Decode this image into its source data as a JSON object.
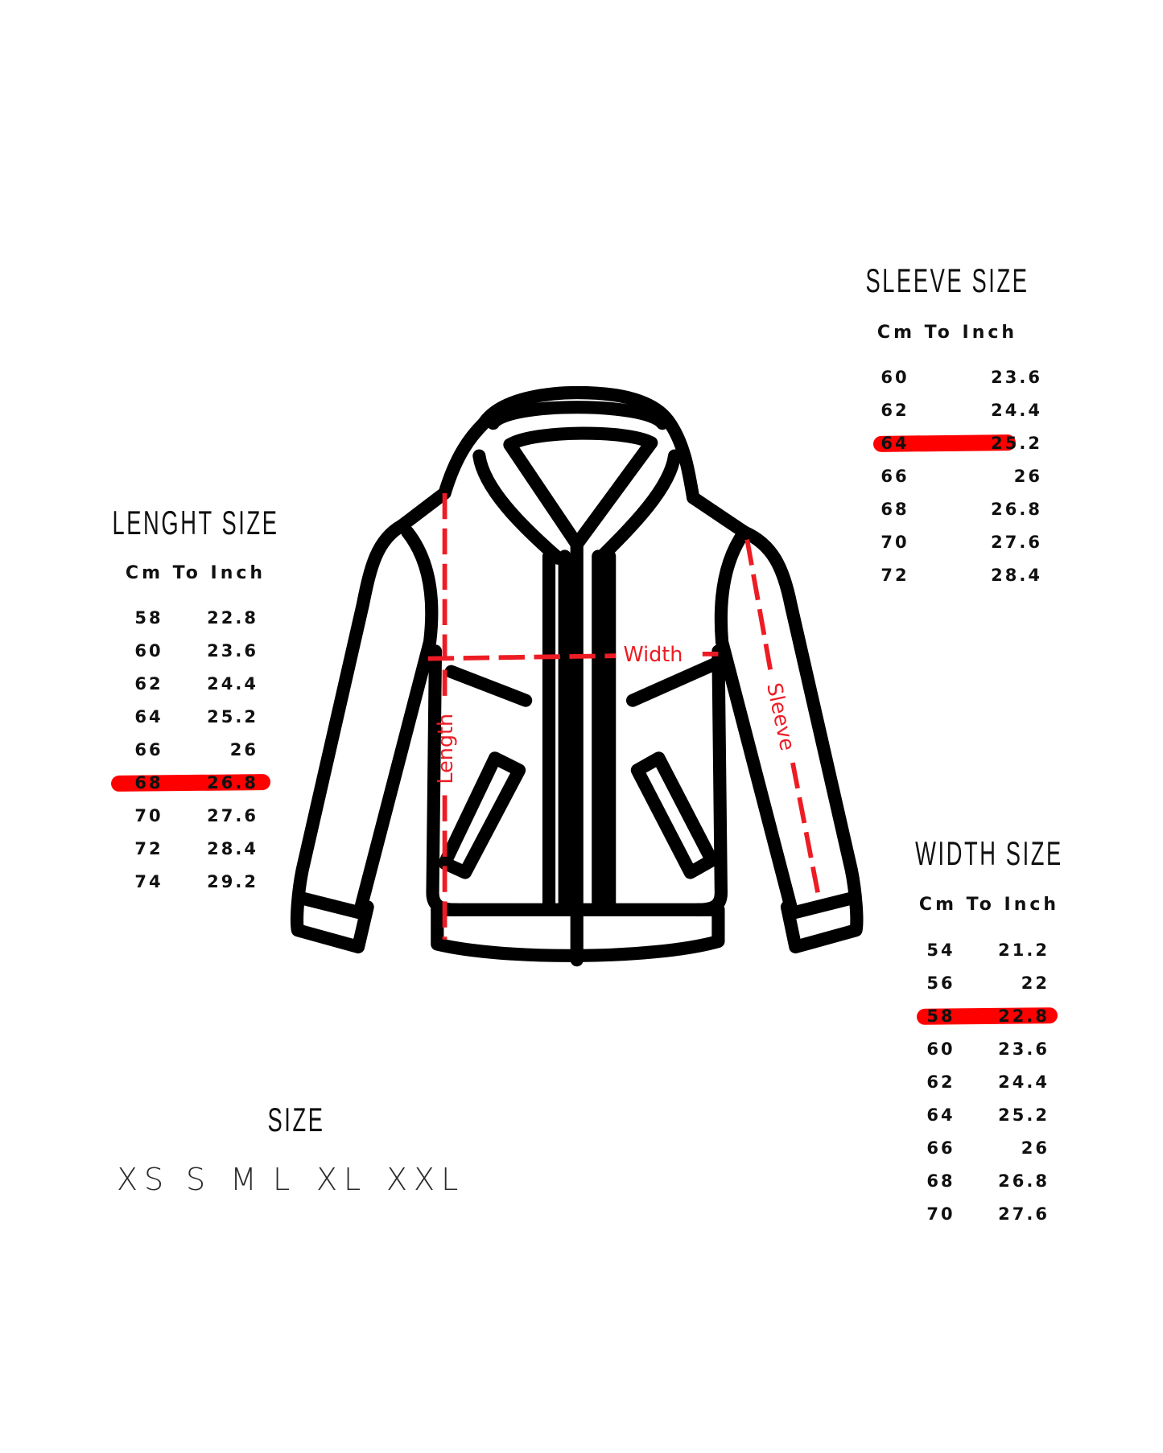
{
  "colors": {
    "highlight": "#ff0000",
    "measure_lines": "#ed1c24",
    "outline": "#000000"
  },
  "illustration": {
    "icon": "hoodie-jacket-outline",
    "labels": {
      "length": "Length",
      "width": "Width",
      "sleeve": "Sleeve"
    }
  },
  "length_table": {
    "title": "LENGHT SIZE",
    "header": "Cm To Inch",
    "highlighted_index": 5,
    "rows": [
      {
        "cm": "58",
        "inch": "22.8"
      },
      {
        "cm": "60",
        "inch": "23.6"
      },
      {
        "cm": "62",
        "inch": "24.4"
      },
      {
        "cm": "64",
        "inch": "25.2"
      },
      {
        "cm": "66",
        "inch": "26"
      },
      {
        "cm": "68",
        "inch": "26.8"
      },
      {
        "cm": "70",
        "inch": "27.6"
      },
      {
        "cm": "72",
        "inch": "28.4"
      },
      {
        "cm": "74",
        "inch": "29.2"
      }
    ]
  },
  "sleeve_table": {
    "title": "SLEEVE SIZE",
    "header": "Cm To Inch",
    "highlighted_index": 2,
    "rows": [
      {
        "cm": "60",
        "inch": "23.6"
      },
      {
        "cm": "62",
        "inch": "24.4"
      },
      {
        "cm": "64",
        "inch": "25.2"
      },
      {
        "cm": "66",
        "inch": "26"
      },
      {
        "cm": "68",
        "inch": "26.8"
      },
      {
        "cm": "70",
        "inch": "27.6"
      },
      {
        "cm": "72",
        "inch": "28.4"
      }
    ]
  },
  "width_table": {
    "title": "WIDTH SIZE",
    "header": "Cm To Inch",
    "highlighted_index": 2,
    "rows": [
      {
        "cm": "54",
        "inch": "21.2"
      },
      {
        "cm": "56",
        "inch": "22"
      },
      {
        "cm": "58",
        "inch": "22.8"
      },
      {
        "cm": "60",
        "inch": "23.6"
      },
      {
        "cm": "62",
        "inch": "24.4"
      },
      {
        "cm": "64",
        "inch": "25.2"
      },
      {
        "cm": "66",
        "inch": "26"
      },
      {
        "cm": "68",
        "inch": "26.8"
      },
      {
        "cm": "70",
        "inch": "27.6"
      }
    ]
  },
  "size": {
    "title": "SIZE",
    "options": [
      "XS",
      "S",
      "M",
      "L",
      "XL",
      "XXL"
    ],
    "selected": "L"
  }
}
